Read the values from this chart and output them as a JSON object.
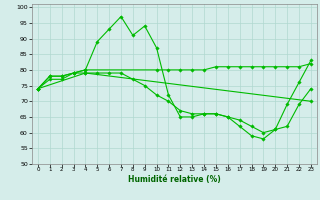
{
  "title": "",
  "xlabel": "Humidité relative (%)",
  "ylabel": "",
  "background_color": "#d5edea",
  "grid_color": "#b0d8d0",
  "line_color": "#00bb00",
  "xlim": [
    -0.5,
    23.5
  ],
  "ylim": [
    50,
    101
  ],
  "yticks": [
    50,
    55,
    60,
    65,
    70,
    75,
    80,
    85,
    90,
    95,
    100
  ],
  "xticks": [
    0,
    1,
    2,
    3,
    4,
    5,
    6,
    7,
    8,
    9,
    10,
    11,
    12,
    13,
    14,
    15,
    16,
    17,
    18,
    19,
    20,
    21,
    22,
    23
  ],
  "series": [
    {
      "x": [
        0,
        1,
        2,
        3,
        4,
        5,
        6,
        7,
        8,
        9,
        10,
        11,
        12,
        13,
        14,
        15,
        16,
        17,
        18,
        19,
        20,
        21,
        22,
        23
      ],
      "y": [
        74,
        78,
        78,
        79,
        80,
        89,
        93,
        97,
        91,
        94,
        87,
        72,
        65,
        65,
        66,
        66,
        65,
        62,
        59,
        58,
        61,
        69,
        76,
        83
      ]
    },
    {
      "x": [
        0,
        1,
        2,
        3,
        4,
        10,
        11,
        12,
        13,
        14,
        15,
        16,
        17,
        18,
        19,
        20,
        21,
        22,
        23
      ],
      "y": [
        74,
        78,
        78,
        79,
        80,
        80,
        80,
        80,
        80,
        80,
        81,
        81,
        81,
        81,
        81,
        81,
        81,
        81,
        82
      ]
    },
    {
      "x": [
        0,
        1,
        2,
        3,
        4,
        5,
        6,
        7,
        8,
        9,
        10,
        11,
        12,
        13,
        14,
        15,
        16,
        17,
        18,
        19,
        20,
        21,
        22,
        23
      ],
      "y": [
        74,
        77,
        77,
        79,
        79,
        79,
        79,
        79,
        77,
        75,
        72,
        70,
        67,
        66,
        66,
        66,
        65,
        64,
        62,
        60,
        61,
        62,
        69,
        74
      ]
    },
    {
      "x": [
        0,
        4,
        23
      ],
      "y": [
        74,
        79,
        70
      ]
    }
  ]
}
